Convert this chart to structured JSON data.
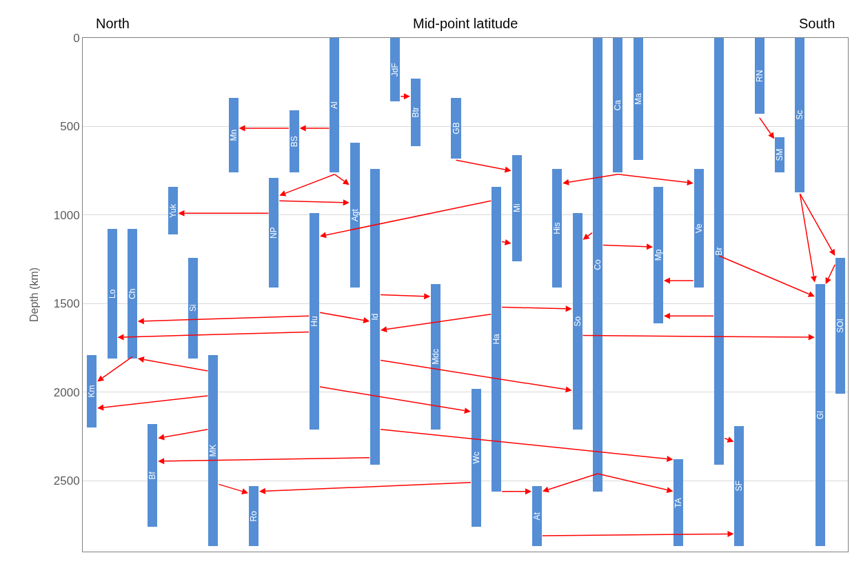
{
  "chart_data": {
    "type": "bar",
    "xlabel": "Mid-point latitude",
    "ylabel": "Depth (km)",
    "annotations": [
      "North",
      "South"
    ],
    "categories": [
      "Km",
      "Lo",
      "Ch",
      "Bf",
      "Yuk",
      "Si",
      "MK",
      "Mn",
      "Ro",
      "NP",
      "BS",
      "Hu",
      "Al",
      "Agt",
      "Id",
      "JdF",
      "Btr",
      "Mdc",
      "GB",
      "Wc",
      "Ha",
      "Mi",
      "At",
      "His",
      "So",
      "Co",
      "Ca",
      "Ma",
      "Mp",
      "TA",
      "Ve",
      "Br",
      "SF",
      "RN",
      "SM",
      "Sc",
      "Gl",
      "SOI"
    ],
    "base": [
      1790,
      1080,
      1080,
      2180,
      840,
      1240,
      1790,
      340,
      2530,
      790,
      410,
      990,
      0,
      590,
      740,
      0,
      230,
      1390,
      340,
      1980,
      840,
      660,
      2530,
      740,
      990,
      0,
      0,
      0,
      840,
      2380,
      740,
      0,
      2190,
      0,
      560,
      0,
      1390,
      1240
    ],
    "values": [
      410,
      730,
      730,
      580,
      270,
      570,
      1080,
      420,
      340,
      620,
      350,
      1220,
      760,
      820,
      1670,
      360,
      380,
      820,
      340,
      780,
      1720,
      600,
      340,
      670,
      1220,
      2560,
      760,
      690,
      770,
      490,
      670,
      2410,
      680,
      430,
      200,
      870,
      1480,
      770
    ],
    "color": "#558ed5",
    "ylim": [
      2900,
      0
    ],
    "yticks": [
      0,
      500,
      1000,
      1500,
      2000,
      2500
    ],
    "grid": "y",
    "tick_labels": "y"
  }
}
